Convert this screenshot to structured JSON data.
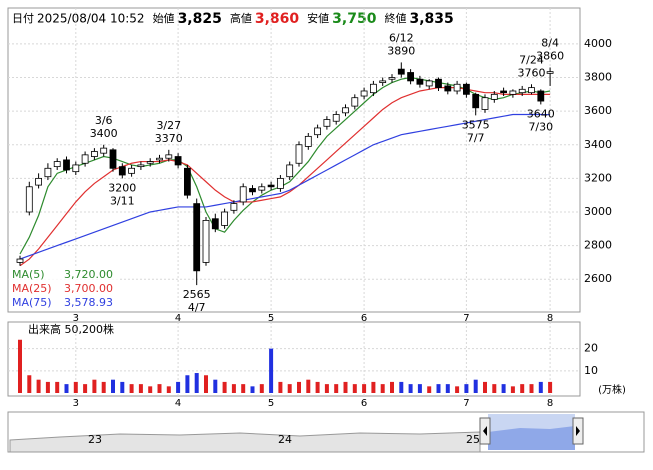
{
  "header": [
    {
      "label": "日付",
      "value": "2025/08/04 10:52"
    },
    {
      "label": "始値",
      "value": "3,825"
    },
    {
      "label": "高値",
      "value": "3,860"
    },
    {
      "label": "安値",
      "value": "3,750"
    },
    {
      "label": "終値",
      "value": "3,835"
    }
  ],
  "chart_data": {
    "type": "candlestick",
    "categories": [
      null,
      null,
      null,
      null,
      null,
      null,
      "3",
      null,
      null,
      null,
      null,
      null,
      null,
      null,
      null,
      null,
      null,
      "4",
      null,
      null,
      null,
      null,
      null,
      null,
      null,
      null,
      null,
      "5",
      null,
      null,
      null,
      null,
      null,
      null,
      null,
      null,
      null,
      "6",
      null,
      null,
      null,
      null,
      null,
      null,
      null,
      null,
      null,
      null,
      "7",
      null,
      null,
      null,
      null,
      null,
      null,
      null,
      null,
      "8"
    ],
    "open": [
      2700,
      3000,
      3160,
      3210,
      3270,
      3310,
      3240,
      3290,
      3330,
      3350,
      3370,
      3270,
      3230,
      3270,
      3290,
      3310,
      3320,
      3330,
      3260,
      3050,
      2700,
      2960,
      2920,
      3010,
      3060,
      3140,
      3130,
      3160,
      3140,
      3210,
      3290,
      3390,
      3460,
      3510,
      3540,
      3590,
      3630,
      3690,
      3710,
      3770,
      3790,
      3850,
      3830,
      3790,
      3750,
      3790,
      3750,
      3720,
      3760,
      3700,
      3610,
      3670,
      3720,
      3700,
      3710,
      3710,
      3720,
      3825
    ],
    "high": [
      2740,
      3180,
      3230,
      3290,
      3320,
      3330,
      3300,
      3360,
      3380,
      3400,
      3380,
      3290,
      3280,
      3300,
      3320,
      3340,
      3370,
      3350,
      3280,
      3080,
      2970,
      2990,
      3020,
      3070,
      3170,
      3160,
      3170,
      3180,
      3220,
      3300,
      3420,
      3470,
      3520,
      3570,
      3600,
      3640,
      3700,
      3740,
      3780,
      3800,
      3820,
      3890,
      3850,
      3810,
      3790,
      3800,
      3770,
      3780,
      3770,
      3710,
      3700,
      3720,
      3740,
      3730,
      3750,
      3760,
      3730,
      3860
    ],
    "low": [
      2680,
      2980,
      3140,
      3190,
      3250,
      3230,
      3220,
      3270,
      3310,
      3330,
      3240,
      3200,
      3210,
      3250,
      3270,
      3290,
      3300,
      3260,
      3080,
      2565,
      2680,
      2880,
      2900,
      2990,
      3040,
      3100,
      3110,
      3130,
      3120,
      3190,
      3270,
      3370,
      3440,
      3490,
      3520,
      3570,
      3610,
      3670,
      3690,
      3750,
      3770,
      3800,
      3760,
      3740,
      3730,
      3720,
      3700,
      3700,
      3680,
      3575,
      3590,
      3650,
      3690,
      3680,
      3690,
      3700,
      3640,
      3750
    ],
    "close": [
      2720,
      3150,
      3200,
      3260,
      3300,
      3250,
      3280,
      3340,
      3360,
      3380,
      3260,
      3220,
      3260,
      3280,
      3300,
      3320,
      3340,
      3280,
      3100,
      2650,
      2950,
      2900,
      3000,
      3050,
      3150,
      3120,
      3150,
      3150,
      3200,
      3280,
      3400,
      3450,
      3500,
      3550,
      3580,
      3620,
      3680,
      3720,
      3760,
      3780,
      3800,
      3820,
      3780,
      3760,
      3780,
      3740,
      3720,
      3760,
      3700,
      3620,
      3680,
      3700,
      3710,
      3720,
      3730,
      3740,
      3660,
      3835
    ],
    "high_dates": [
      null,
      null,
      null,
      null,
      null,
      null,
      null,
      null,
      null,
      "3/6",
      null,
      null,
      null,
      null,
      null,
      null,
      "3/27",
      null,
      null,
      null,
      null,
      null,
      null,
      null,
      null,
      null,
      null,
      null,
      null,
      null,
      null,
      null,
      null,
      null,
      null,
      null,
      null,
      null,
      null,
      null,
      null,
      "6/12",
      null,
      null,
      null,
      null,
      null,
      null,
      null,
      null,
      null,
      null,
      null,
      null,
      null,
      "7/24",
      null,
      "8/4"
    ],
    "low_dates": [
      null,
      null,
      null,
      null,
      null,
      null,
      null,
      null,
      null,
      null,
      null,
      "3/11",
      null,
      null,
      null,
      null,
      null,
      null,
      null,
      "4/7",
      null,
      null,
      null,
      null,
      null,
      null,
      null,
      null,
      null,
      null,
      null,
      null,
      null,
      null,
      null,
      null,
      null,
      null,
      null,
      null,
      null,
      null,
      null,
      null,
      null,
      null,
      null,
      null,
      null,
      "7/7",
      null,
      null,
      null,
      null,
      null,
      null,
      "7/30",
      null
    ],
    "series": [
      {
        "name": "MA(5)",
        "label": "3,720.00",
        "color": "#2e8b2e",
        "values": [
          2750,
          2850,
          2980,
          3150,
          3230,
          3250,
          3270,
          3290,
          3310,
          3330,
          3320,
          3300,
          3280,
          3270,
          3280,
          3290,
          3310,
          3310,
          3270,
          3150,
          3000,
          2900,
          2880,
          2950,
          3010,
          3060,
          3100,
          3130,
          3150,
          3180,
          3240,
          3300,
          3380,
          3450,
          3500,
          3550,
          3600,
          3650,
          3700,
          3740,
          3770,
          3790,
          3800,
          3790,
          3780,
          3770,
          3760,
          3750,
          3730,
          3700,
          3680,
          3670,
          3680,
          3700,
          3710,
          3720,
          3710,
          3720
        ]
      },
      {
        "name": "MA(25)",
        "label": "3,700.00",
        "color": "#e03030",
        "values": [
          2680,
          2720,
          2780,
          2850,
          2920,
          2990,
          3060,
          3120,
          3170,
          3210,
          3250,
          3270,
          3290,
          3300,
          3300,
          3300,
          3310,
          3300,
          3280,
          3230,
          3180,
          3130,
          3090,
          3060,
          3060,
          3060,
          3070,
          3080,
          3090,
          3120,
          3160,
          3210,
          3260,
          3310,
          3360,
          3410,
          3460,
          3510,
          3560,
          3610,
          3650,
          3680,
          3700,
          3720,
          3730,
          3740,
          3740,
          3740,
          3730,
          3720,
          3710,
          3710,
          3700,
          3700,
          3700,
          3700,
          3700,
          3700
        ]
      },
      {
        "name": "MA(75)",
        "label": "3,578.93",
        "color": "#3040e0",
        "values": [
          2720,
          2740,
          2760,
          2780,
          2800,
          2820,
          2840,
          2860,
          2880,
          2900,
          2920,
          2940,
          2960,
          2980,
          3000,
          3010,
          3020,
          3030,
          3030,
          3030,
          3030,
          3040,
          3050,
          3060,
          3070,
          3080,
          3090,
          3100,
          3110,
          3130,
          3160,
          3190,
          3220,
          3250,
          3280,
          3310,
          3340,
          3370,
          3400,
          3420,
          3440,
          3460,
          3470,
          3480,
          3490,
          3500,
          3510,
          3520,
          3530,
          3540,
          3550,
          3560,
          3570,
          3580,
          3580,
          3580,
          3580,
          3579
        ]
      }
    ],
    "ylim": [
      2405,
      4065
    ],
    "yticks": [
      2600,
      2800,
      3000,
      3200,
      3400,
      3600,
      3800,
      4000
    ],
    "grid": true,
    "up_color": "#ffffff",
    "down_color": "#000000",
    "volume": {
      "title": "出来高 50,200株",
      "unit": "(万株)",
      "up_color": "#e02020",
      "down_color": "#2030e0",
      "ylim": [
        0,
        32
      ],
      "yticks": [
        10,
        20
      ],
      "values": [
        24,
        8,
        6,
        5,
        5,
        4,
        5,
        4,
        6,
        5,
        6,
        5,
        4,
        4,
        3,
        4,
        3,
        5,
        8,
        9,
        8,
        6,
        5,
        4,
        4,
        3,
        4,
        20,
        5,
        4,
        5,
        6,
        5,
        4,
        4,
        5,
        4,
        4,
        5,
        4,
        5,
        5,
        4,
        4,
        3,
        4,
        4,
        3,
        4,
        6,
        5,
        4,
        4,
        3,
        4,
        4,
        5,
        5
      ]
    }
  },
  "navigator": {
    "labels": [
      "23",
      "24",
      "25"
    ]
  }
}
